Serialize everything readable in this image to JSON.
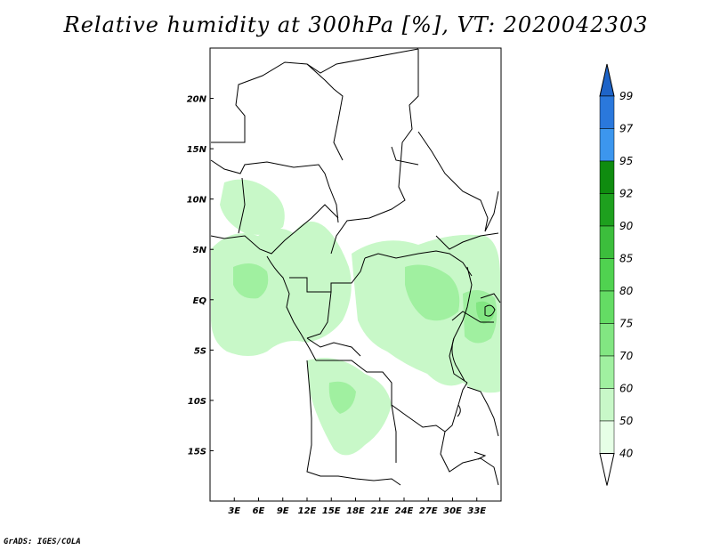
{
  "title": "Relative humidity at 300hPa [%], VT: 2020042303",
  "credit": "GrADS: IGES/COLA",
  "map": {
    "lon_range": [
      0,
      36
    ],
    "lat_range": [
      -20,
      25
    ],
    "lon_ticks": [
      "3E",
      "6E",
      "9E",
      "12E",
      "15E",
      "18E",
      "21E",
      "24E",
      "27E",
      "30E",
      "33E"
    ],
    "lat_ticks": [
      "20N",
      "15N",
      "10N",
      "5N",
      "EQ",
      "5S",
      "10S",
      "15S"
    ]
  },
  "colorbar": {
    "levels": [
      "99",
      "97",
      "95",
      "92",
      "90",
      "85",
      "80",
      "75",
      "70",
      "60",
      "50",
      "40"
    ],
    "colors": [
      "#1e64c8",
      "#2a78dc",
      "#3c96ee",
      "#0f8c0f",
      "#1ea01e",
      "#3cbe3c",
      "#50d250",
      "#64dc64",
      "#82e682",
      "#a0f0a0",
      "#c8f8c8",
      "#e6ffe6"
    ]
  }
}
